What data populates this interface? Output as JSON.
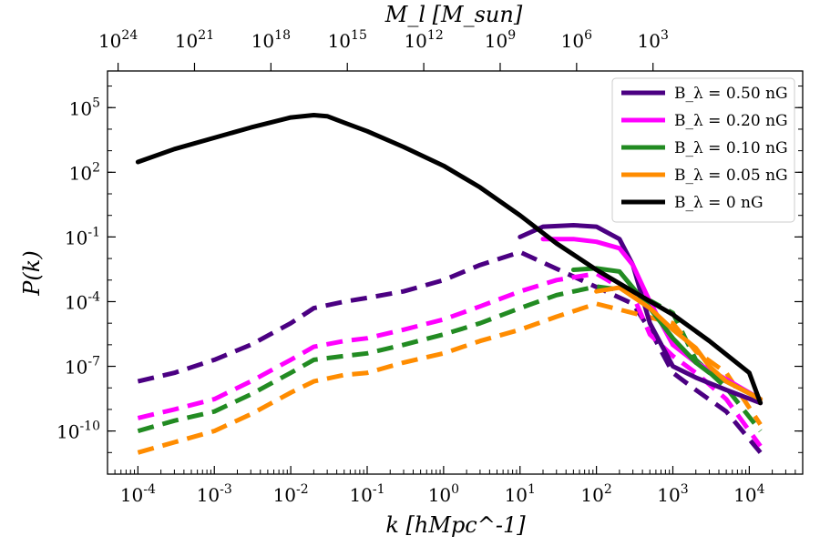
{
  "chart_data": {
    "type": "line",
    "title": "",
    "xlabel": "k [hMpc^-1]",
    "ylabel": "P(k)",
    "top_xlabel": "M_l [M_sun]",
    "xscale": "log",
    "yscale": "log",
    "xlim": [
      4e-05,
      50000
    ],
    "ylim": [
      1e-12,
      5000000.0
    ],
    "legend_position": "top-right",
    "x_ticks": [
      {
        "value": 0.0001,
        "label": "10^-4"
      },
      {
        "value": 0.001,
        "label": "10^-3"
      },
      {
        "value": 0.01,
        "label": "10^-2"
      },
      {
        "value": 0.1,
        "label": "10^-1"
      },
      {
        "value": 1,
        "label": "10^0"
      },
      {
        "value": 10,
        "label": "10^1"
      },
      {
        "value": 100,
        "label": "10^2"
      },
      {
        "value": 1000,
        "label": "10^3"
      },
      {
        "value": 10000,
        "label": "10^4"
      }
    ],
    "y_ticks": [
      {
        "value": 1e-10,
        "label": "10^-10"
      },
      {
        "value": 1e-07,
        "label": "10^-7"
      },
      {
        "value": 0.0001,
        "label": "10^-4"
      },
      {
        "value": 0.1,
        "label": "10^-1"
      },
      {
        "value": 100,
        "label": "10^2"
      },
      {
        "value": 100000,
        "label": "10^5"
      }
    ],
    "top_ticks": [
      {
        "k": 5.5e-05,
        "label": "10^24"
      },
      {
        "k": 0.00055,
        "label": "10^21"
      },
      {
        "k": 0.0055,
        "label": "10^18"
      },
      {
        "k": 0.055,
        "label": "10^15"
      },
      {
        "k": 0.55,
        "label": "10^12"
      },
      {
        "k": 5.5,
        "label": "10^9"
      },
      {
        "k": 55,
        "label": "10^6"
      },
      {
        "k": 550,
        "label": "10^3"
      }
    ],
    "series": [
      {
        "name": "B_λ = 0.50 nG",
        "color": "#4b0082",
        "style": "solid",
        "points": [
          [
            10,
            0.1
          ],
          [
            20,
            0.3
          ],
          [
            50,
            0.35
          ],
          [
            100,
            0.3
          ],
          [
            200,
            0.08
          ],
          [
            300,
            0.005
          ],
          [
            500,
            1e-05
          ],
          [
            1000,
            1e-07
          ],
          [
            2000,
            3e-08
          ],
          [
            5000,
            8e-09
          ],
          [
            14000,
            2e-09
          ]
        ]
      },
      {
        "name": "B_λ = 0.20 nG",
        "color": "#ff00ff",
        "style": "solid",
        "points": [
          [
            20,
            0.08
          ],
          [
            50,
            0.08
          ],
          [
            100,
            0.06
          ],
          [
            200,
            0.03
          ],
          [
            300,
            0.005
          ],
          [
            500,
            0.0001
          ],
          [
            1000,
            1e-06
          ],
          [
            2000,
            1.5e-07
          ],
          [
            5000,
            2.5e-08
          ],
          [
            14000,
            3e-09
          ]
        ]
      },
      {
        "name": "B_λ = 0.10 nG",
        "color": "#228b22",
        "style": "solid",
        "points": [
          [
            50,
            0.003
          ],
          [
            100,
            0.0035
          ],
          [
            200,
            0.0025
          ],
          [
            500,
            5e-05
          ],
          [
            1000,
            2e-06
          ],
          [
            2000,
            1.5e-07
          ],
          [
            3000,
            5e-08
          ],
          [
            5000,
            2e-08
          ],
          [
            14000,
            3e-09
          ]
        ]
      },
      {
        "name": "B_λ = 0.05 nG",
        "color": "#ff8c00",
        "style": "solid",
        "points": [
          [
            100,
            0.0003
          ],
          [
            200,
            0.00045
          ],
          [
            500,
            5e-05
          ],
          [
            1000,
            5e-06
          ],
          [
            2000,
            7e-07
          ],
          [
            3000,
            1e-07
          ],
          [
            5000,
            2e-08
          ],
          [
            14000,
            3e-09
          ]
        ]
      },
      {
        "name": "B_λ = 0 nG",
        "color": "#000000",
        "style": "solid",
        "points": [
          [
            0.0001,
            300
          ],
          [
            0.0003,
            1200
          ],
          [
            0.001,
            4000
          ],
          [
            0.003,
            12000
          ],
          [
            0.01,
            35000
          ],
          [
            0.02,
            45000
          ],
          [
            0.03,
            40000
          ],
          [
            0.05,
            20000
          ],
          [
            0.1,
            8000
          ],
          [
            0.3,
            1500
          ],
          [
            1,
            200
          ],
          [
            3,
            20
          ],
          [
            10,
            1
          ],
          [
            30,
            0.05
          ],
          [
            100,
            0.003
          ],
          [
            300,
            0.0003
          ],
          [
            1000,
            2.5e-05
          ],
          [
            3000,
            1.5e-06
          ],
          [
            10000,
            5e-08
          ],
          [
            14000,
            2e-09
          ]
        ]
      }
    ],
    "dashed_series": [
      {
        "color": "#4b0082",
        "points": [
          [
            0.0001,
            2e-08
          ],
          [
            0.0003,
            5e-08
          ],
          [
            0.001,
            2e-07
          ],
          [
            0.003,
            1e-06
          ],
          [
            0.01,
            1e-05
          ],
          [
            0.02,
            5e-05
          ],
          [
            0.05,
            0.0001
          ],
          [
            0.1,
            0.00015
          ],
          [
            0.3,
            0.0003
          ],
          [
            1,
            0.001
          ],
          [
            3,
            0.005
          ],
          [
            10,
            0.02
          ],
          [
            300,
            8e-05
          ],
          [
            500,
            5e-06
          ],
          [
            1000,
            5e-08
          ],
          [
            2000,
            8e-09
          ],
          [
            5000,
            8e-10
          ],
          [
            14000,
            1e-11
          ]
        ]
      },
      {
        "color": "#ff00ff",
        "points": [
          [
            0.0001,
            4e-10
          ],
          [
            0.0003,
            1e-09
          ],
          [
            0.001,
            3e-09
          ],
          [
            0.003,
            2e-08
          ],
          [
            0.01,
            2e-07
          ],
          [
            0.02,
            8e-07
          ],
          [
            0.05,
            1.5e-06
          ],
          [
            0.1,
            2e-06
          ],
          [
            0.3,
            5e-06
          ],
          [
            1,
            1.5e-05
          ],
          [
            3,
            6e-05
          ],
          [
            10,
            0.0003
          ],
          [
            30,
            0.001
          ],
          [
            100,
            0.002
          ],
          [
            300,
            0.0002
          ],
          [
            500,
            3e-06
          ],
          [
            1000,
            3e-07
          ],
          [
            2000,
            5e-08
          ],
          [
            5000,
            3e-09
          ],
          [
            14000,
            2e-11
          ]
        ]
      },
      {
        "color": "#228b22",
        "points": [
          [
            0.0001,
            1e-10
          ],
          [
            0.0003,
            3e-10
          ],
          [
            0.001,
            8e-10
          ],
          [
            0.003,
            5e-09
          ],
          [
            0.01,
            5e-08
          ],
          [
            0.02,
            2e-07
          ],
          [
            0.05,
            3e-07
          ],
          [
            0.1,
            4e-07
          ],
          [
            0.3,
            1e-06
          ],
          [
            1,
            3e-06
          ],
          [
            3,
            1e-05
          ],
          [
            10,
            5e-05
          ],
          [
            30,
            0.0002
          ],
          [
            100,
            0.0005
          ],
          [
            300,
            0.0003
          ],
          [
            1000,
            3e-05
          ],
          [
            2000,
            2e-07
          ],
          [
            5000,
            1e-08
          ],
          [
            14000,
            1e-10
          ]
        ]
      },
      {
        "color": "#ff8c00",
        "points": [
          [
            0.0001,
            1e-11
          ],
          [
            0.0003,
            3e-11
          ],
          [
            0.001,
            1e-10
          ],
          [
            0.003,
            6e-10
          ],
          [
            0.01,
            6e-09
          ],
          [
            0.02,
            2e-08
          ],
          [
            0.05,
            4e-08
          ],
          [
            0.1,
            5e-08
          ],
          [
            0.3,
            1.5e-07
          ],
          [
            1,
            4e-07
          ],
          [
            3,
            1.5e-06
          ],
          [
            10,
            5e-06
          ],
          [
            30,
            2e-05
          ],
          [
            100,
            8e-05
          ],
          [
            300,
            3e-05
          ],
          [
            1000,
            1e-05
          ],
          [
            2000,
            5e-07
          ],
          [
            5000,
            5e-08
          ],
          [
            14000,
            2e-10
          ]
        ]
      }
    ]
  }
}
